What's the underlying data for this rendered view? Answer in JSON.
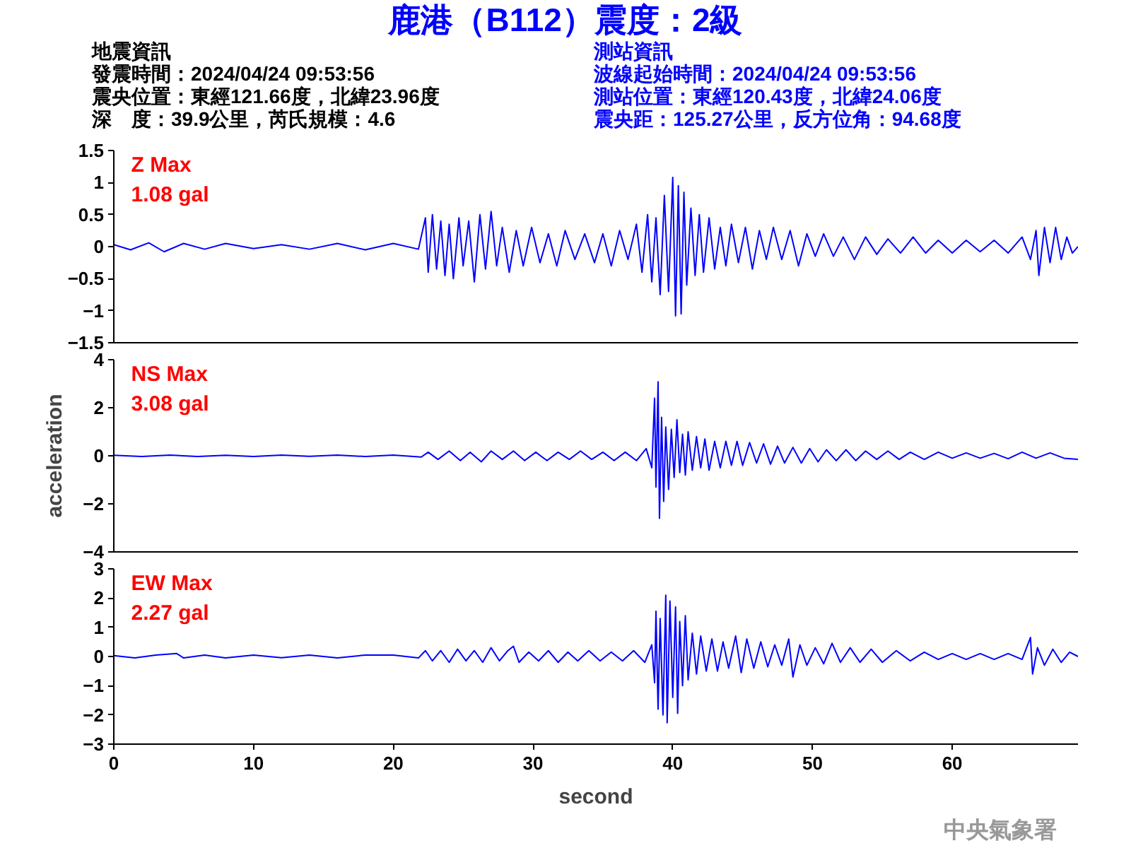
{
  "chart_data": [
    {
      "type": "line",
      "title": "鹿港（B112）震度：2級",
      "annotations": [
        "地震資訊",
        "發震時間：2024/04/24 09:53:56",
        "震央位置：東經121.66度，北緯23.96度",
        "深　度：39.9公里，芮氏規模：4.6",
        "測站資訊",
        "波線起始時間：2024/04/24 09:53:56",
        "測站位置：東經120.43度，北緯24.06度",
        "震央距：125.27公里，反方位角：94.68度",
        "Z Max",
        "1.08 gal"
      ],
      "xlim": [
        0,
        69
      ],
      "ylim": [
        -1.5,
        1.5
      ],
      "yticks": [
        -1.5,
        -1,
        -0.5,
        0,
        0.5,
        1,
        1.5
      ],
      "tick_labels": "y",
      "grid": false,
      "series": [
        {
          "color": "#0000ff",
          "x": [
            0,
            1.2,
            2.5,
            3.6,
            5,
            6.5,
            8,
            10,
            12,
            14,
            16,
            18,
            20,
            21.8,
            22.3,
            22.5,
            22.8,
            23.1,
            23.4,
            23.7,
            24.0,
            24.3,
            24.7,
            25.0,
            25.4,
            25.8,
            26.2,
            26.6,
            27.0,
            27.4,
            27.8,
            28.3,
            28.8,
            29.3,
            29.9,
            30.5,
            31.1,
            31.7,
            32.3,
            33,
            33.7,
            34.4,
            35,
            35.6,
            36.2,
            36.8,
            37.4,
            37.8,
            38.2,
            38.5,
            38.8,
            39.1,
            39.4,
            39.7,
            40.0,
            40.2,
            40.4,
            40.6,
            40.8,
            41.0,
            41.3,
            41.6,
            41.9,
            42.2,
            42.6,
            43,
            43.4,
            43.8,
            44.2,
            44.7,
            45.2,
            45.7,
            46.2,
            46.7,
            47.2,
            47.8,
            48.4,
            49,
            49.6,
            50.2,
            50.8,
            51.5,
            52.2,
            53,
            53.8,
            54.6,
            55.4,
            56.3,
            57.2,
            58.1,
            59,
            60,
            61,
            62,
            63,
            64,
            65,
            65.6,
            66.0,
            66.2,
            66.6,
            67,
            67.4,
            67.8,
            68.2,
            68.6,
            69
          ],
          "values": [
            0.03,
            -0.05,
            0.06,
            -0.08,
            0.05,
            -0.04,
            0.05,
            -0.03,
            0.03,
            -0.04,
            0.05,
            -0.05,
            0.05,
            -0.04,
            0.45,
            -0.4,
            0.5,
            -0.35,
            0.4,
            -0.45,
            0.35,
            -0.5,
            0.45,
            -0.3,
            0.4,
            -0.55,
            0.5,
            -0.35,
            0.55,
            -0.3,
            0.3,
            -0.4,
            0.25,
            -0.3,
            0.3,
            -0.25,
            0.2,
            -0.3,
            0.25,
            -0.2,
            0.2,
            -0.25,
            0.2,
            -0.3,
            0.25,
            -0.2,
            0.35,
            -0.4,
            0.5,
            -0.55,
            0.45,
            -0.75,
            0.8,
            -0.7,
            1.08,
            -1.08,
            0.95,
            -1.05,
            0.85,
            -0.6,
            0.6,
            -0.45,
            0.5,
            -0.4,
            0.45,
            -0.35,
            0.3,
            -0.3,
            0.35,
            -0.25,
            0.3,
            -0.35,
            0.25,
            -0.2,
            0.3,
            -0.2,
            0.25,
            -0.3,
            0.2,
            -0.15,
            0.2,
            -0.15,
            0.15,
            -0.2,
            0.15,
            -0.12,
            0.12,
            -0.1,
            0.15,
            -0.1,
            0.1,
            -0.1,
            0.1,
            -0.08,
            0.1,
            -0.1,
            0.15,
            -0.2,
            0.25,
            -0.45,
            0.3,
            -0.25,
            0.3,
            -0.2,
            0.15,
            -0.1,
            0.0
          ]
        }
      ]
    },
    {
      "type": "line",
      "ylabel": "acceleration",
      "annotations": [
        "NS Max",
        "3.08 gal"
      ],
      "xlim": [
        0,
        69
      ],
      "ylim": [
        -4,
        4
      ],
      "yticks": [
        -4,
        -2,
        0,
        2,
        4
      ],
      "tick_labels": "y",
      "grid": false,
      "series": [
        {
          "color": "#0000ff",
          "x": [
            0,
            2,
            4,
            6,
            8,
            10,
            12,
            14,
            16,
            18,
            20,
            22,
            22.5,
            23.2,
            24,
            24.8,
            25.5,
            26.3,
            27,
            27.8,
            28.6,
            29.4,
            30.2,
            31,
            31.8,
            32.6,
            33.4,
            34.2,
            35,
            35.8,
            36.6,
            37.4,
            38.1,
            38.5,
            38.7,
            38.8,
            38.95,
            39.05,
            39.2,
            39.35,
            39.5,
            39.7,
            39.9,
            40.1,
            40.3,
            40.5,
            40.7,
            40.9,
            41.1,
            41.4,
            41.7,
            42,
            42.3,
            42.6,
            43,
            43.4,
            43.8,
            44.2,
            44.6,
            45,
            45.5,
            46,
            46.5,
            47,
            47.5,
            48,
            48.6,
            49.2,
            49.8,
            50.4,
            51,
            51.7,
            52.4,
            53.1,
            53.8,
            54.6,
            55.4,
            56.2,
            57,
            58,
            59,
            60,
            61,
            62,
            63,
            64,
            65,
            66,
            67,
            68,
            69
          ],
          "values": [
            0.02,
            -0.03,
            0.03,
            -0.03,
            0.02,
            -0.03,
            0.03,
            -0.02,
            0.03,
            -0.03,
            0.03,
            -0.05,
            0.15,
            -0.15,
            0.2,
            -0.2,
            0.15,
            -0.25,
            0.2,
            -0.15,
            0.2,
            -0.2,
            0.15,
            -0.2,
            0.15,
            -0.15,
            0.2,
            -0.15,
            0.15,
            -0.2,
            0.15,
            -0.2,
            0.3,
            -0.5,
            2.4,
            -1.3,
            3.08,
            -2.6,
            1.6,
            -1.9,
            1.2,
            -1.4,
            1.1,
            -0.9,
            1.5,
            -0.7,
            0.9,
            -0.8,
            1.0,
            -0.6,
            0.8,
            -0.5,
            0.7,
            -0.6,
            0.6,
            -0.5,
            0.6,
            -0.4,
            0.6,
            -0.4,
            0.55,
            -0.3,
            0.5,
            -0.35,
            0.4,
            -0.3,
            0.35,
            -0.3,
            0.3,
            -0.25,
            0.25,
            -0.2,
            0.25,
            -0.2,
            0.2,
            -0.15,
            0.2,
            -0.15,
            0.15,
            -0.15,
            0.15,
            -0.1,
            0.12,
            -0.1,
            0.1,
            -0.12,
            0.15,
            -0.1,
            0.12,
            -0.1,
            -0.15
          ]
        }
      ]
    },
    {
      "type": "line",
      "xlabel": "second",
      "annotations": [
        "EW Max",
        "2.27 gal",
        "中央氣象署"
      ],
      "xlim": [
        0,
        69
      ],
      "xticks": [
        0,
        10,
        20,
        30,
        40,
        50,
        60
      ],
      "ylim": [
        -3,
        3
      ],
      "yticks": [
        -3,
        -2,
        -1,
        0,
        1,
        2,
        3
      ],
      "grid": false,
      "series": [
        {
          "color": "#0000ff",
          "x": [
            0,
            1.5,
            3,
            4.5,
            5,
            6.5,
            8,
            10,
            12,
            14,
            16,
            18,
            20,
            21.8,
            22.3,
            22.8,
            23.4,
            24,
            24.6,
            25.2,
            25.8,
            26.4,
            27,
            27.6,
            28.2,
            28.6,
            29,
            29.7,
            30.4,
            31.1,
            31.8,
            32.5,
            33.2,
            34,
            34.8,
            35.6,
            36.4,
            37.2,
            38,
            38.5,
            38.7,
            38.8,
            38.95,
            39.1,
            39.3,
            39.5,
            39.6,
            39.8,
            40.0,
            40.2,
            40.35,
            40.5,
            40.7,
            40.9,
            41.1,
            41.4,
            41.7,
            42,
            42.4,
            42.8,
            43.2,
            43.6,
            44,
            44.5,
            44.9,
            45.3,
            45.8,
            46.3,
            46.8,
            47.3,
            47.8,
            48.3,
            48.6,
            49.1,
            49.6,
            50.2,
            50.8,
            51.4,
            52,
            52.7,
            53.4,
            54.2,
            55,
            56,
            57,
            58,
            59,
            60,
            61,
            62,
            63,
            64,
            65,
            65.6,
            65.75,
            66.1,
            66.6,
            67.2,
            67.8,
            68.4,
            69
          ],
          "values": [
            0.03,
            -0.05,
            0.05,
            0.1,
            -0.05,
            0.05,
            -0.05,
            0.05,
            -0.04,
            0.05,
            -0.05,
            0.05,
            0.05,
            -0.05,
            0.2,
            -0.15,
            0.2,
            -0.2,
            0.25,
            -0.15,
            0.2,
            -0.2,
            0.3,
            -0.15,
            0.2,
            0.35,
            -0.2,
            0.15,
            -0.15,
            0.2,
            -0.2,
            0.15,
            -0.15,
            0.2,
            -0.15,
            0.15,
            -0.15,
            0.2,
            -0.2,
            0.4,
            -0.9,
            1.55,
            -1.8,
            1.3,
            -2.0,
            2.1,
            -2.27,
            1.9,
            -1.4,
            1.7,
            -1.95,
            1.2,
            -1.0,
            1.4,
            -0.8,
            0.8,
            -0.6,
            0.7,
            -0.5,
            0.6,
            -0.5,
            0.5,
            -0.4,
            0.7,
            -0.55,
            0.6,
            -0.4,
            0.5,
            -0.35,
            0.4,
            -0.3,
            0.6,
            -0.7,
            0.4,
            -0.3,
            0.3,
            -0.25,
            0.45,
            -0.2,
            0.3,
            -0.2,
            0.25,
            -0.2,
            0.2,
            -0.15,
            0.15,
            -0.1,
            0.1,
            -0.1,
            0.1,
            -0.1,
            0.1,
            -0.1,
            0.65,
            -0.6,
            0.3,
            -0.3,
            0.25,
            -0.2,
            0.15,
            0.0
          ]
        }
      ]
    }
  ]
}
